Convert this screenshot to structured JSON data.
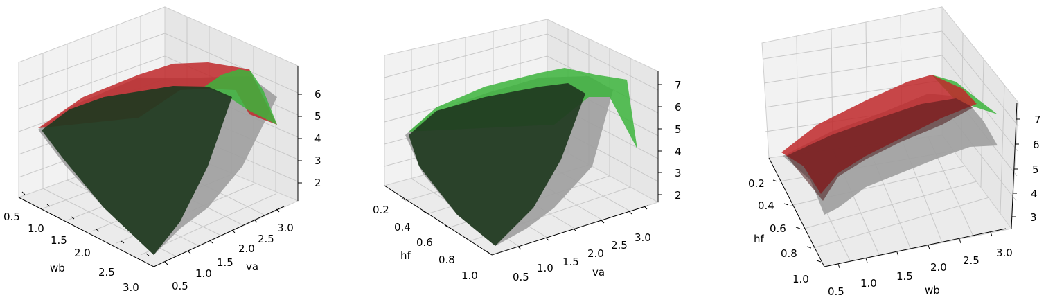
{
  "colors": {
    "gray_surface": "#9e9e9e",
    "green_surface": "#2ca02c",
    "red_surface": "#c0282a",
    "dark_overlap": "#1f3a1f",
    "pane": "#f0f0f0",
    "grid": "#c8c8c8"
  },
  "chart_data": [
    {
      "type": "surface",
      "view": "azimuth-left, shows wb vs va",
      "xlabel": "wb",
      "ylabel": "va",
      "zlabel": "",
      "x_ticks": [
        "0.5",
        "1.0",
        "1.5",
        "2.0",
        "2.5",
        "3.0"
      ],
      "y_ticks": [
        "0.5",
        "1.0",
        "1.5",
        "2.0",
        "2.5",
        "3.0"
      ],
      "z_ticks": [
        "2",
        "3",
        "4",
        "5",
        "6"
      ],
      "xlim": [
        0.5,
        3.0
      ],
      "ylim": [
        0.5,
        3.0
      ],
      "zlim": [
        1.5,
        6.7
      ],
      "series": [
        {
          "color": "gray",
          "z_peak": 5.7,
          "z_min": 1.5
        },
        {
          "color": "green",
          "z_peak": 5.8,
          "z_min": 1.6
        },
        {
          "color": "red",
          "z_peak": 6.0,
          "z_min": 4.5
        }
      ]
    },
    {
      "type": "surface",
      "view": "azimuth-left, shows hf vs va",
      "xlabel": "hf",
      "ylabel": "va",
      "zlabel": "",
      "x_ticks": [
        "0.2",
        "0.4",
        "0.6",
        "0.8",
        "1.0"
      ],
      "y_ticks": [
        "0.5",
        "1.0",
        "1.5",
        "2.0",
        "2.5",
        "3.0"
      ],
      "z_ticks": [
        "2",
        "3",
        "4",
        "5",
        "6",
        "7"
      ],
      "xlim": [
        0.1,
        1.0
      ],
      "ylim": [
        0.5,
        3.0
      ],
      "zlim": [
        1.6,
        7.3
      ],
      "series": [
        {
          "color": "gray",
          "z_peak": 6.6,
          "z_min": 1.7
        },
        {
          "color": "green",
          "z_peak": 7.0,
          "z_min": 1.8
        }
      ]
    },
    {
      "type": "surface",
      "view": "azimuth-left, shows hf vs wb",
      "xlabel": "hf",
      "ylabel": "wb",
      "zlabel": "",
      "x_ticks": [
        "0.2",
        "0.4",
        "0.6",
        "0.8",
        "1.0"
      ],
      "y_ticks": [
        "0.5",
        "1.0",
        "1.5",
        "2.0",
        "2.5",
        "3.0"
      ],
      "z_ticks": [
        "3",
        "4",
        "5",
        "6",
        "7"
      ],
      "xlim": [
        0.1,
        1.0
      ],
      "ylim": [
        0.5,
        3.0
      ],
      "zlim": [
        2.8,
        7.2
      ],
      "series": [
        {
          "color": "gray",
          "z_peak": 6.8,
          "z_min": 4.0
        },
        {
          "color": "green",
          "z_peak": 6.8,
          "z_min": 4.2
        },
        {
          "color": "red",
          "z_peak": 7.0,
          "z_min": 5.0
        }
      ]
    }
  ]
}
